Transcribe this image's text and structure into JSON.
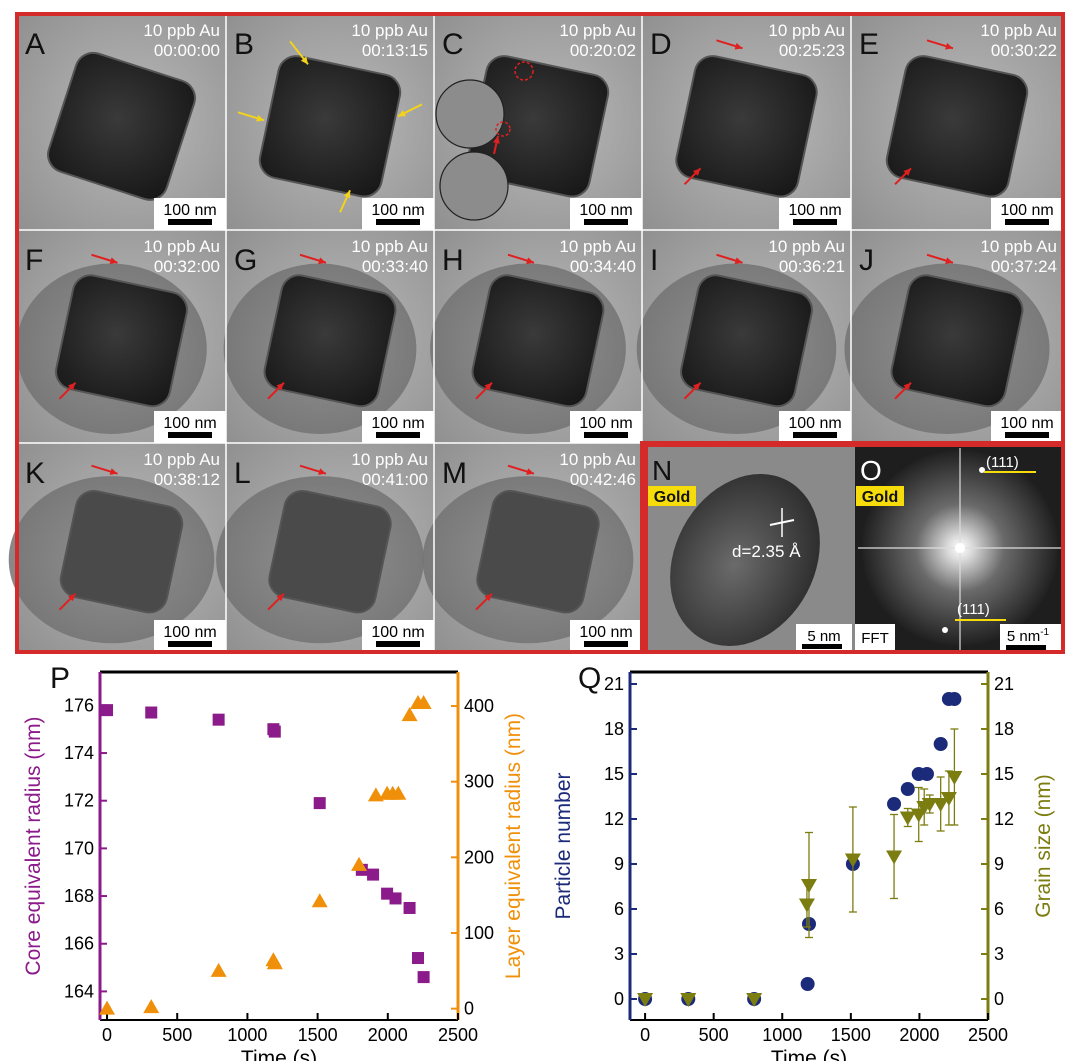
{
  "panels": [
    {
      "letter": "A",
      "conc": "10 ppb Au",
      "time": "00:00:00",
      "scale": "100 nm"
    },
    {
      "letter": "B",
      "conc": "10 ppb Au",
      "time": "00:13:15",
      "scale": "100 nm"
    },
    {
      "letter": "C",
      "conc": "10 ppb Au",
      "time": "00:20:02",
      "scale": "100 nm"
    },
    {
      "letter": "D",
      "conc": "10 ppb Au",
      "time": "00:25:23",
      "scale": "100 nm"
    },
    {
      "letter": "E",
      "conc": "10 ppb Au",
      "time": "00:30:22",
      "scale": "100 nm"
    },
    {
      "letter": "F",
      "conc": "10 ppb Au",
      "time": "00:32:00",
      "scale": "100 nm"
    },
    {
      "letter": "G",
      "conc": "10 ppb Au",
      "time": "00:33:40",
      "scale": "100 nm"
    },
    {
      "letter": "H",
      "conc": "10 ppb Au",
      "time": "00:34:40",
      "scale": "100 nm"
    },
    {
      "letter": "I",
      "conc": "10 ppb Au",
      "time": "00:36:21",
      "scale": "100 nm"
    },
    {
      "letter": "J",
      "conc": "10 ppb Au",
      "time": "00:37:24",
      "scale": "100 nm"
    },
    {
      "letter": "K",
      "conc": "10 ppb Au",
      "time": "00:38:12",
      "scale": "100 nm"
    },
    {
      "letter": "L",
      "conc": "10 ppb Au",
      "time": "00:41:00",
      "scale": "100 nm"
    },
    {
      "letter": "M",
      "conc": "10 ppb Au",
      "time": "00:42:46",
      "scale": "100 nm"
    }
  ],
  "panel_n": {
    "letter": "N",
    "tag": "Gold",
    "d_label": "d=2.35 Å",
    "scale": "5 nm"
  },
  "panel_o": {
    "letter": "O",
    "tag": "Gold",
    "plane_top": "(111)",
    "plane_bottom": "(111)",
    "fft": "FFT",
    "scale": "5 nm"
  },
  "colors": {
    "frame": "#d42a2a",
    "purple": "#8b1a8b",
    "orange": "#f0900a",
    "navy": "#1c2a7a",
    "olive": "#7c7d10",
    "arrow_yellow": "#f2d21a",
    "arrow_red": "#e02020",
    "gold_tag": "#f5dc0a"
  },
  "chart_data": [
    {
      "panel": "P",
      "type": "scatter",
      "xlabel": "Time (s)",
      "ylabel": "Core equivalent radius (nm)",
      "y2label": "Layer equivalent radius (nm)",
      "xlim": [
        -50,
        2500
      ],
      "ylim": [
        162.8,
        177.4
      ],
      "y2lim": [
        -15,
        445
      ],
      "xticks": [
        0,
        500,
        1000,
        1500,
        2000,
        2500
      ],
      "yticks": [
        164,
        166,
        168,
        170,
        172,
        174,
        176
      ],
      "y2ticks": [
        0,
        100,
        200,
        300,
        400
      ],
      "series": [
        {
          "axis": "left",
          "marker": "square",
          "color": "purple",
          "x": [
            0,
            315,
            795,
            1185,
            1195,
            1515,
            1815,
            1895,
            1995,
            2055,
            2155,
            2215,
            2255
          ],
          "y": [
            175.8,
            175.7,
            175.4,
            175.0,
            174.9,
            171.9,
            169.1,
            168.9,
            168.1,
            167.9,
            167.5,
            165.4,
            164.6
          ]
        },
        {
          "axis": "right",
          "marker": "triangle",
          "color": "orange",
          "x": [
            0,
            315,
            795,
            1185,
            1195,
            1515,
            1795,
            1915,
            1995,
            2035,
            2075,
            2155,
            2215,
            2255
          ],
          "y": [
            0,
            2,
            50,
            64,
            60,
            142,
            190,
            282,
            284,
            284,
            284,
            388,
            404,
            404
          ]
        }
      ]
    },
    {
      "panel": "Q",
      "type": "scatter",
      "xlabel": "Time (s)",
      "ylabel": "Particle number",
      "y2label": "Grain size (nm)",
      "xlim": [
        -110,
        2500
      ],
      "ylim": [
        -1.4,
        21.8
      ],
      "y2lim": [
        -1.4,
        21.8
      ],
      "xticks": [
        0,
        500,
        1000,
        1500,
        2000,
        2500
      ],
      "yticks": [
        0,
        3,
        6,
        9,
        12,
        15,
        18,
        21
      ],
      "y2ticks": [
        0,
        3,
        6,
        9,
        12,
        15,
        18,
        21
      ],
      "series": [
        {
          "axis": "left",
          "marker": "circle",
          "color": "navy",
          "x": [
            0,
            315,
            795,
            1185,
            1195,
            1515,
            1815,
            1915,
            1995,
            2055,
            2155,
            2215,
            2255
          ],
          "y": [
            0,
            0,
            0,
            1,
            5,
            9,
            13,
            14,
            15,
            15,
            17,
            20,
            20
          ]
        },
        {
          "axis": "right",
          "marker": "triangle-down",
          "color": "olive",
          "x": [
            0,
            315,
            795,
            1180,
            1195,
            1515,
            1815,
            1915,
            1995,
            2035,
            2075,
            2155,
            2215,
            2255
          ],
          "y": [
            0,
            0,
            0,
            6.3,
            7.6,
            9.3,
            9.5,
            12.1,
            12.3,
            12.8,
            13.0,
            13.0,
            13.4,
            14.8
          ],
          "err": [
            0,
            0,
            0,
            1.5,
            3.5,
            3.5,
            2.8,
            0.6,
            1.8,
            1.2,
            0.6,
            1.8,
            1.8,
            3.2
          ]
        }
      ]
    }
  ]
}
